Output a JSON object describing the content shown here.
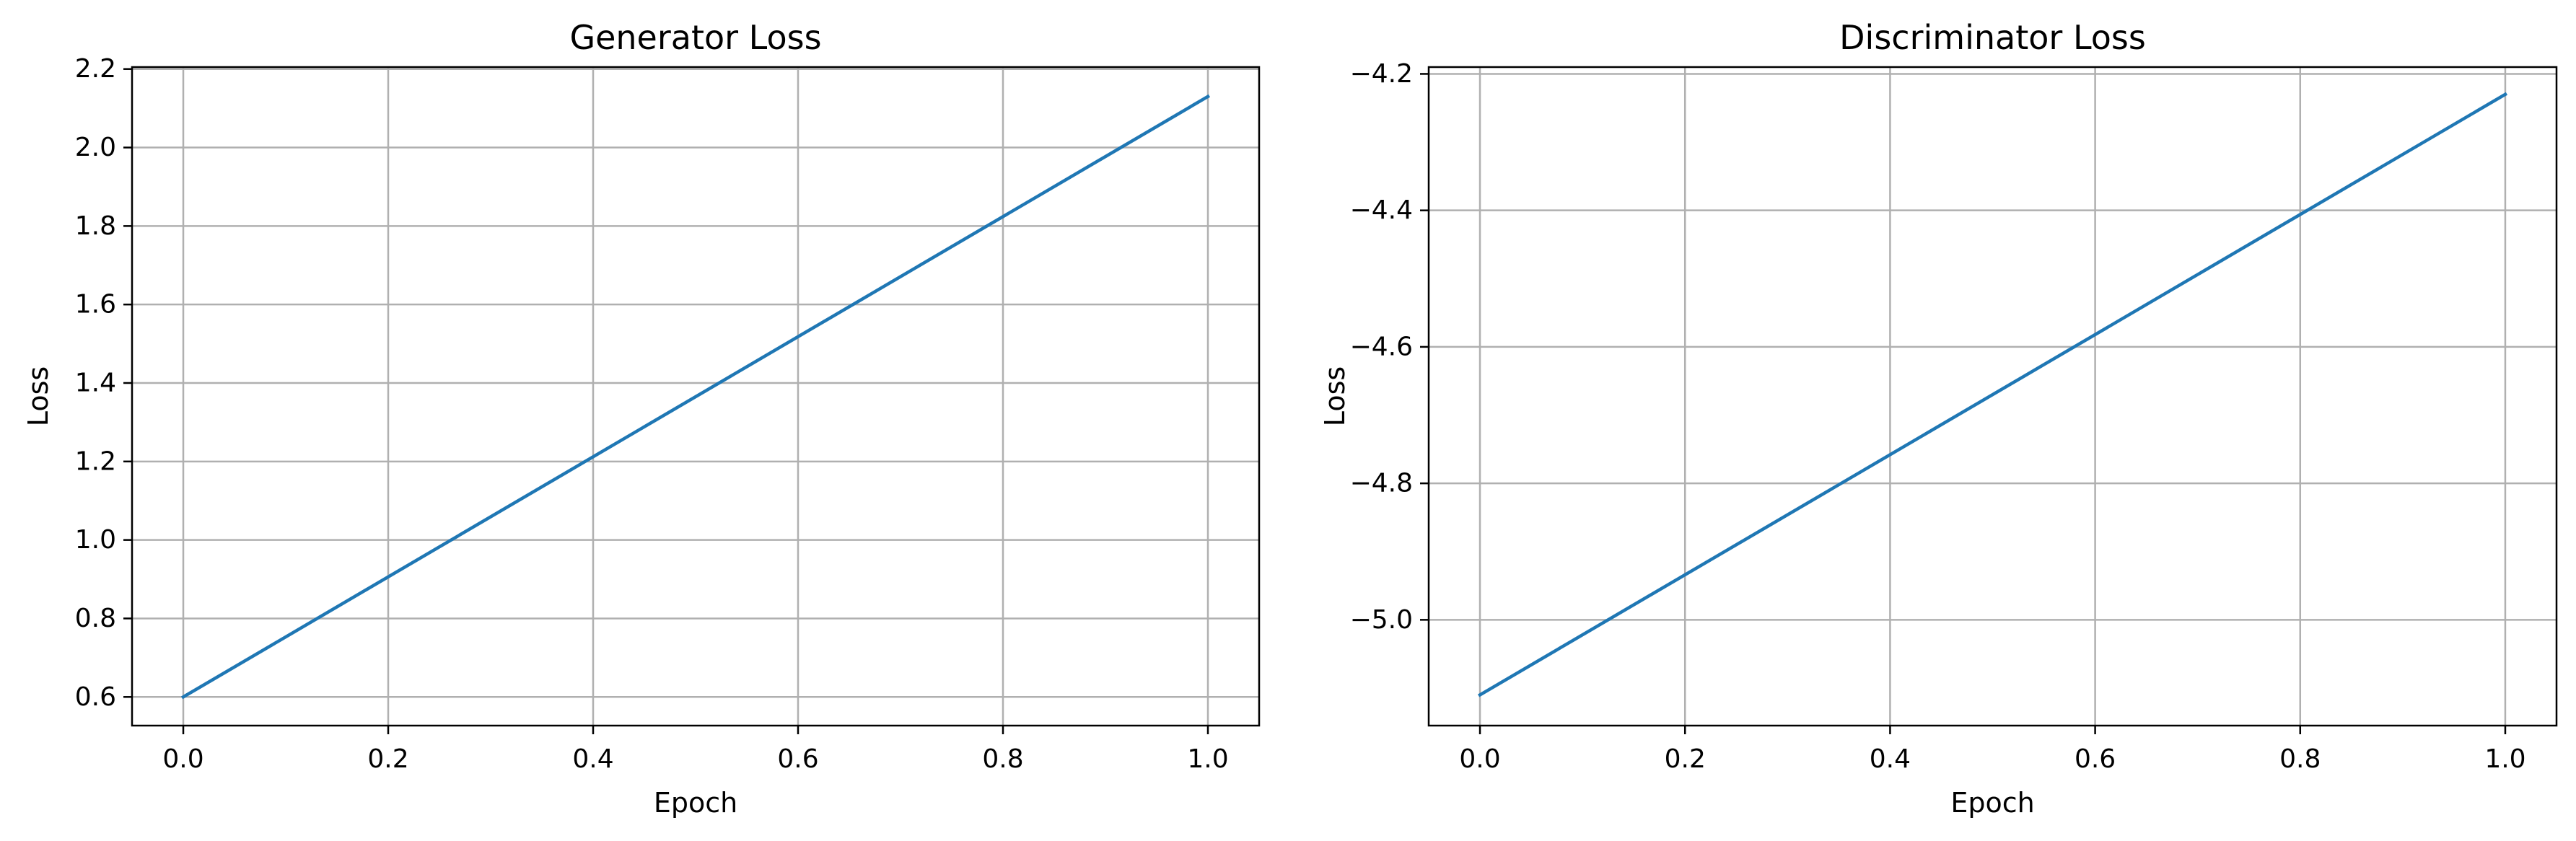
{
  "chart_data": [
    {
      "type": "line",
      "title": "Generator Loss",
      "xlabel": "Epoch",
      "ylabel": "Loss",
      "xlim": [
        -0.05,
        1.05
      ],
      "ylim": [
        0.527,
        2.205
      ],
      "xticks": [
        0.0,
        0.2,
        0.4,
        0.6,
        0.8,
        1.0
      ],
      "xtick_labels": [
        "0.0",
        "0.2",
        "0.4",
        "0.6",
        "0.8",
        "1.0"
      ],
      "yticks": [
        0.6,
        0.8,
        1.0,
        1.2,
        1.4,
        1.6,
        1.8,
        2.0,
        2.2
      ],
      "ytick_labels": [
        "0.6",
        "0.8",
        "1.0",
        "1.2",
        "1.4",
        "1.6",
        "1.8",
        "2.0",
        "2.2"
      ],
      "grid": true,
      "series": [
        {
          "x": [
            0.0,
            1.0
          ],
          "y": [
            0.6,
            2.13
          ],
          "color": "#1f77b4"
        }
      ]
    },
    {
      "type": "line",
      "title": "Discriminator Loss",
      "xlabel": "Epoch",
      "ylabel": "Loss",
      "xlim": [
        -0.05,
        1.05
      ],
      "ylim": [
        -5.155,
        -4.19
      ],
      "xticks": [
        0.0,
        0.2,
        0.4,
        0.6,
        0.8,
        1.0
      ],
      "xtick_labels": [
        "0.0",
        "0.2",
        "0.4",
        "0.6",
        "0.8",
        "1.0"
      ],
      "yticks": [
        -5.0,
        -4.8,
        -4.6,
        -4.4,
        -4.2
      ],
      "ytick_labels": [
        "−5.0",
        "−4.8",
        "−4.6",
        "−4.4",
        "−4.2"
      ],
      "grid": true,
      "series": [
        {
          "x": [
            0.0,
            1.0
          ],
          "y": [
            -5.11,
            -4.23
          ],
          "color": "#1f77b4"
        }
      ]
    }
  ]
}
